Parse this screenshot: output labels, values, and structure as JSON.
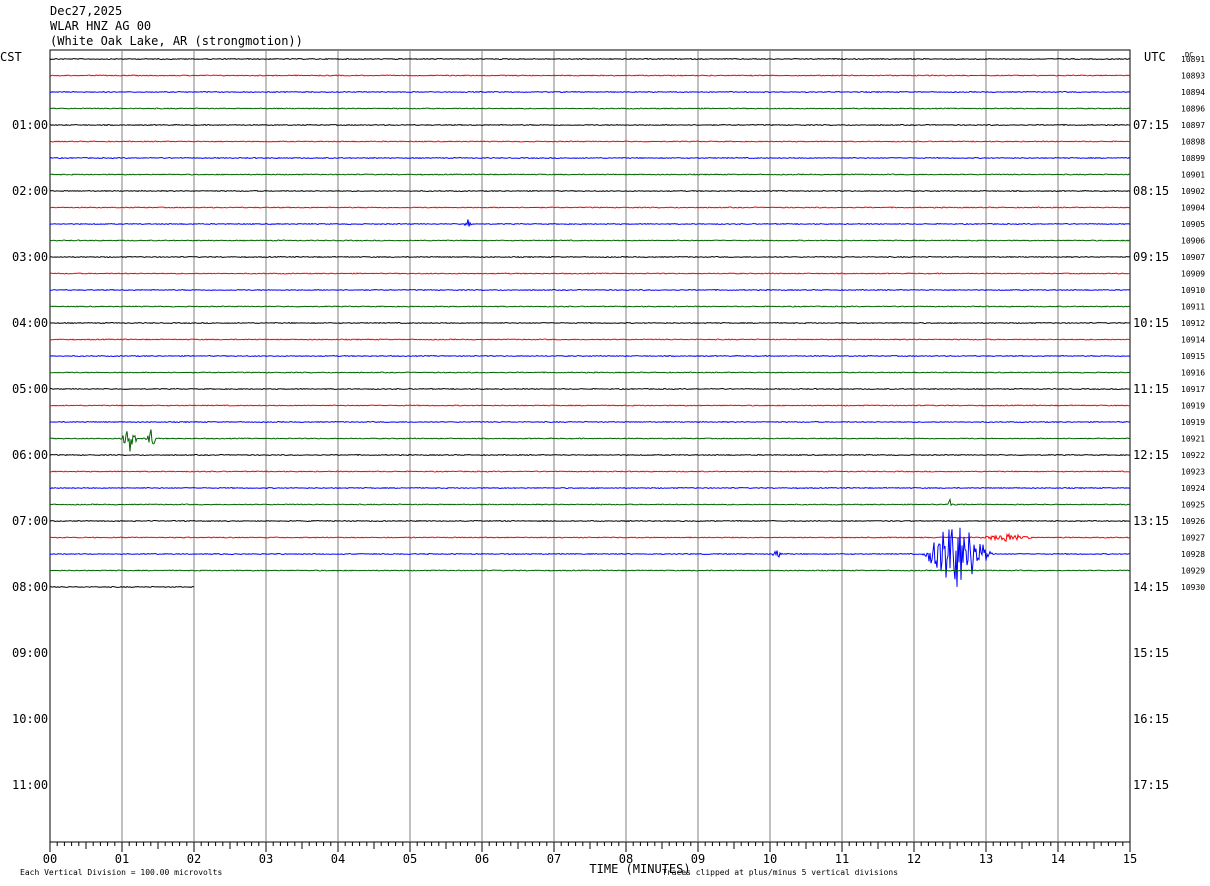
{
  "header": {
    "date": "Dec27,2025",
    "station": "WLAR HNZ AG 00",
    "location": "(White Oak Lake, AR (strongmotion))"
  },
  "chart_data": {
    "type": "line",
    "title": "WLAR HNZ AG 00",
    "left_axis_label": "CST",
    "right_axis_label": "UTC",
    "dc_label": "DC",
    "xlabel": "TIME (MINUTES)",
    "xlim": [
      0,
      15
    ],
    "x_ticks": [
      "00",
      "01",
      "02",
      "03",
      "04",
      "05",
      "06",
      "07",
      "08",
      "09",
      "10",
      "11",
      "12",
      "13",
      "14",
      "15"
    ],
    "left_hour_labels": [
      "01:00",
      "02:00",
      "03:00",
      "04:00",
      "05:00",
      "06:00",
      "07:00",
      "08:00",
      "09:00",
      "10:00",
      "11:00"
    ],
    "right_hour_labels": [
      "07:15",
      "08:15",
      "09:15",
      "10:15",
      "11:15",
      "12:15",
      "13:15",
      "14:15",
      "15:15",
      "16:15",
      "17:15"
    ],
    "total_rows": 48,
    "trace_colors": [
      "#000000",
      "#ff0000",
      "#0000ff",
      "#006400"
    ],
    "dc_offsets": [
      "10891",
      "10893",
      "10894",
      "10896",
      "10897",
      "10898",
      "10899",
      "10901",
      "10902",
      "10904",
      "10905",
      "10906",
      "10907",
      "10909",
      "10910",
      "10911",
      "10912",
      "10914",
      "10915",
      "10916",
      "10917",
      "10919",
      "10919",
      "10921",
      "10922",
      "10923",
      "10924",
      "10925",
      "10926",
      "10927",
      "10928",
      "10929",
      "10930"
    ],
    "last_trace_end_minute": 2.0,
    "events": [
      {
        "row": 10,
        "minute": 5.8,
        "amplitude": 0.7,
        "duration_min": 0.05
      },
      {
        "row": 23,
        "minute": 1.1,
        "amplitude": 1.0,
        "duration_min": 0.12
      },
      {
        "row": 23,
        "minute": 1.4,
        "amplitude": 0.7,
        "duration_min": 0.08
      },
      {
        "row": 30,
        "minute": 10.1,
        "amplitude": 0.3,
        "duration_min": 0.1
      },
      {
        "row": 30,
        "minute": 12.6,
        "amplitude": 2.3,
        "duration_min": 0.5
      },
      {
        "row": 29,
        "minute": 13.3,
        "amplitude": 0.25,
        "duration_min": 0.4
      },
      {
        "row": 27,
        "minute": 12.5,
        "amplitude": 0.4,
        "duration_min": 0.03
      }
    ],
    "footer_scale": "Each Vertical Division =  100.00 microvolts",
    "footer_clip": "Traces clipped at plus/minus 5 vertical divisions"
  }
}
